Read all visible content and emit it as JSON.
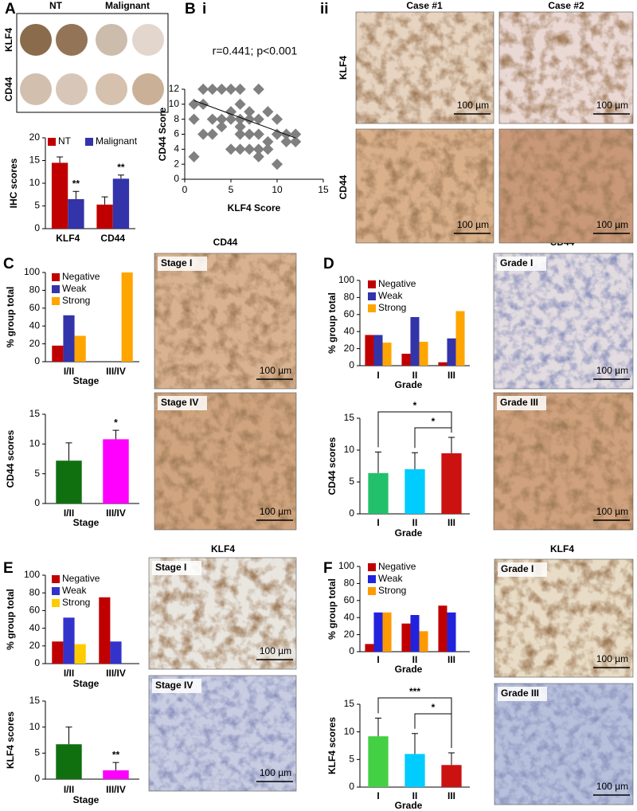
{
  "figure": {
    "panels": [
      "A",
      "B",
      "i",
      "ii",
      "C",
      "D",
      "E",
      "F"
    ],
    "tma": {
      "columns": [
        "NT",
        "Malignant"
      ],
      "rows": [
        "KLF4",
        "CD44"
      ]
    },
    "case_headers": [
      "Case #1",
      "Case #2"
    ],
    "case_rows": [
      "KLF4",
      "CD44"
    ],
    "image_titles": [
      "CD44",
      "CD44",
      "KLF4",
      "KLF4"
    ],
    "images": [
      {
        "scale": "100 µm"
      },
      {
        "scale": "100 µm"
      },
      {
        "scale": "100 µm"
      },
      {
        "scale": "100 µm"
      },
      {
        "label": "Stage I",
        "scale": "100 µm"
      },
      {
        "label": "Stage IV",
        "scale": "100 µm"
      },
      {
        "label": "Grade I",
        "scale": "100 µm"
      },
      {
        "label": "Grade III",
        "scale": "100 µm"
      },
      {
        "label": "Stage I",
        "scale": "100 µm"
      },
      {
        "label": "Stage IV",
        "scale": "100 µm"
      },
      {
        "label": "Grade I",
        "scale": "100 µm"
      },
      {
        "label": "Grade III",
        "scale": "100 µm"
      }
    ]
  },
  "chart_data": [
    {
      "type": "bar",
      "ylabel": "IHC scores",
      "categories": [
        "KLF4",
        "CD44"
      ],
      "series": [
        {
          "name": "NT",
          "color": "#c00000",
          "values": [
            14.5,
            5.3
          ],
          "errors": [
            1.3,
            1.7
          ]
        },
        {
          "name": "Malignant",
          "color": "#3333aa",
          "values": [
            6.5,
            11
          ],
          "errors": [
            1.7,
            0.8
          ]
        }
      ],
      "ylim": [
        0,
        20
      ],
      "yticks": [
        0,
        5,
        10,
        15,
        20
      ],
      "stars": [
        {
          "text": "**",
          "series": "Malignant",
          "category": "KLF4"
        },
        {
          "text": "**",
          "series": "Malignant",
          "category": "CD44"
        }
      ]
    },
    {
      "type": "scatter",
      "annotation": "r=0.441; p<0.001",
      "xlabel": "KLF4 Score",
      "ylabel": "CD44 Score",
      "color": "#808080",
      "x": [
        1,
        1,
        1,
        2,
        2,
        2,
        3,
        3,
        3,
        4,
        4,
        4,
        5,
        5,
        5,
        5,
        6,
        6,
        6,
        6,
        6,
        6,
        7,
        7,
        7,
        7,
        8,
        8,
        8,
        8,
        8,
        9,
        9,
        9,
        10,
        10,
        10,
        11,
        11,
        12,
        12
      ],
      "y": [
        10,
        8,
        3,
        12,
        10,
        6,
        12,
        8,
        6,
        12,
        8,
        7,
        12,
        9,
        8,
        4,
        12,
        10,
        8,
        7,
        6,
        4,
        9,
        8,
        6,
        4,
        12,
        8,
        6,
        4,
        3,
        9,
        5,
        4,
        8,
        6,
        2,
        6,
        5,
        6,
        5
      ],
      "trendline": {
        "x": [
          1,
          12
        ],
        "y": [
          10.5,
          5.5
        ]
      },
      "xlim": [
        0,
        15
      ],
      "xticks": [
        0,
        5,
        10,
        15
      ],
      "ylim": [
        0,
        12
      ],
      "yticks": [
        0,
        2,
        4,
        6,
        8,
        10,
        12
      ]
    },
    {
      "type": "bar",
      "ylabel": "% group total",
      "xlabel": "Stage",
      "categories": [
        "I/II",
        "III/IV"
      ],
      "series": [
        {
          "name": "Negative",
          "color": "#c00000",
          "values": [
            18,
            0
          ]
        },
        {
          "name": "Weak",
          "color": "#3333aa",
          "values": [
            52,
            0
          ]
        },
        {
          "name": "Strong",
          "color": "#ffa500",
          "values": [
            29,
            100
          ]
        }
      ],
      "ylim": [
        0,
        100
      ],
      "yticks": [
        0,
        20,
        40,
        60,
        80,
        100
      ]
    },
    {
      "type": "bar",
      "ylabel": "CD44 scores",
      "xlabel": "Stage",
      "categories": [
        "I/II",
        "III/IV"
      ],
      "values": [
        7.2,
        10.8
      ],
      "errors": [
        3,
        1.5
      ],
      "colors": [
        "#107010",
        "#ff00ff"
      ],
      "ylim": [
        0,
        15
      ],
      "yticks": [
        0,
        5,
        10,
        15
      ],
      "stars": [
        {
          "text": "*",
          "category": "III/IV"
        }
      ]
    },
    {
      "type": "bar",
      "ylabel": "% group total",
      "xlabel": "Grade",
      "categories": [
        "I",
        "II",
        "III"
      ],
      "series": [
        {
          "name": "Negative",
          "color": "#c00000",
          "values": [
            36,
            14,
            4
          ]
        },
        {
          "name": "Weak",
          "color": "#3333aa",
          "values": [
            36,
            57,
            32
          ]
        },
        {
          "name": "Strong",
          "color": "#ffa500",
          "values": [
            27,
            28,
            64
          ]
        }
      ],
      "ylim": [
        0,
        100
      ],
      "yticks": [
        0,
        20,
        40,
        60,
        80,
        100
      ]
    },
    {
      "type": "bar",
      "ylabel": "CD44 scores",
      "xlabel": "Grade",
      "categories": [
        "I",
        "II",
        "III"
      ],
      "values": [
        6.4,
        7,
        9.5
      ],
      "errors": [
        3.3,
        2.6,
        2.5
      ],
      "colors": [
        "#22c06a",
        "#00ccff",
        "#cc1111"
      ],
      "ylim": [
        0,
        15
      ],
      "yticks": [
        0,
        5,
        10,
        15
      ],
      "brackets": [
        {
          "text": "*",
          "categories": [
            "I",
            "III"
          ]
        },
        {
          "text": "*",
          "categories": [
            "II",
            "III"
          ]
        }
      ]
    },
    {
      "type": "bar",
      "ylabel": "% group total",
      "xlabel": "Stage",
      "categories": [
        "I/II",
        "III/IV"
      ],
      "series": [
        {
          "name": "Negative",
          "color": "#c00000",
          "values": [
            25,
            75
          ]
        },
        {
          "name": "Weak",
          "color": "#3333cc",
          "values": [
            52,
            25
          ]
        },
        {
          "name": "Strong",
          "color": "#ffcc00",
          "values": [
            22,
            0
          ]
        }
      ],
      "ylim": [
        0,
        100
      ],
      "yticks": [
        0,
        20,
        40,
        60,
        80,
        100
      ]
    },
    {
      "type": "bar",
      "ylabel": "KLF4 scores",
      "xlabel": "Stage",
      "categories": [
        "I/II",
        "III/IV"
      ],
      "values": [
        6.7,
        1.7
      ],
      "errors": [
        3.3,
        1.5
      ],
      "colors": [
        "#107010",
        "#ff00ff"
      ],
      "ylim": [
        0,
        15
      ],
      "yticks": [
        0,
        5,
        10,
        15
      ],
      "stars": [
        {
          "text": "**",
          "category": "III/IV"
        }
      ]
    },
    {
      "type": "bar",
      "ylabel": "% group total",
      "xlabel": "Grade",
      "categories": [
        "I",
        "II",
        "III"
      ],
      "series": [
        {
          "name": "Negative",
          "color": "#c00000",
          "values": [
            9,
            33,
            54
          ]
        },
        {
          "name": "Weak",
          "color": "#2222dd",
          "values": [
            46,
            43,
            46
          ]
        },
        {
          "name": "Strong",
          "color": "#ff9900",
          "values": [
            46,
            24,
            0
          ]
        }
      ],
      "ylim": [
        0,
        100
      ],
      "yticks": [
        0,
        20,
        40,
        60,
        80,
        100
      ]
    },
    {
      "type": "bar",
      "ylabel": "KLF4 scores",
      "xlabel": "Grade",
      "categories": [
        "I",
        "II",
        "III"
      ],
      "values": [
        9.2,
        6,
        4
      ],
      "errors": [
        3.3,
        3.7,
        2.2
      ],
      "colors": [
        "#44d044",
        "#00ccff",
        "#cc1111"
      ],
      "ylim": [
        0,
        15
      ],
      "yticks": [
        0,
        5,
        10,
        15
      ],
      "brackets": [
        {
          "text": "***",
          "categories": [
            "I",
            "III"
          ]
        },
        {
          "text": "*",
          "categories": [
            "II",
            "III"
          ]
        }
      ]
    }
  ]
}
